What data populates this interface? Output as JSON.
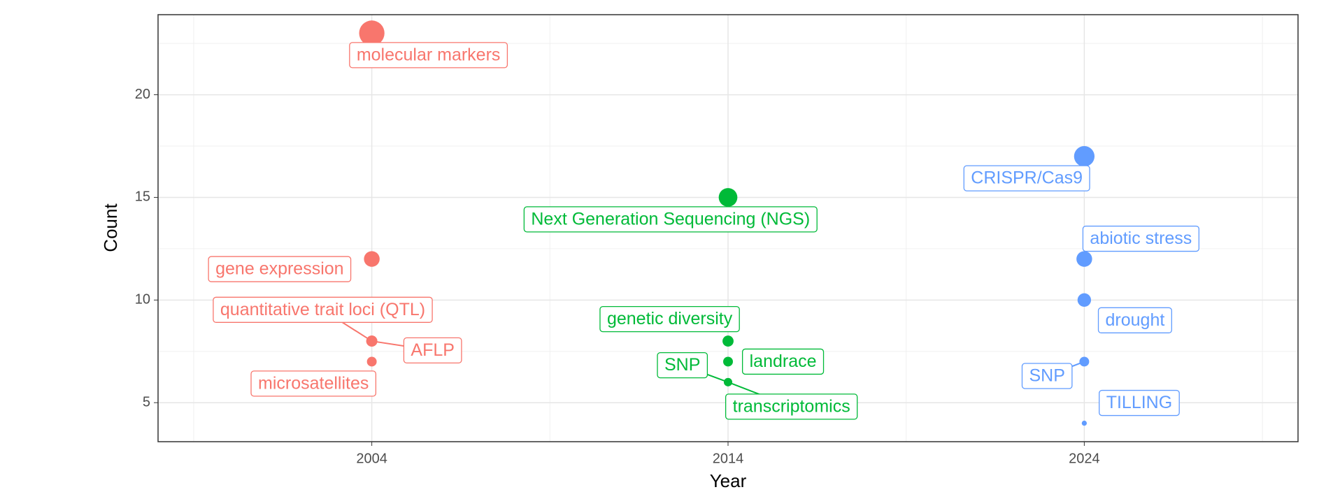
{
  "chart_data": {
    "type": "scatter",
    "x_label": "Year",
    "y_label": "Count",
    "xlim": [
      1998,
      2030
    ],
    "ylim": [
      3.1,
      23.9
    ],
    "xticks": [
      2004,
      2014,
      2024
    ],
    "yticks": [
      5,
      10,
      15,
      20
    ],
    "grid": true,
    "series": [
      {
        "color": "#F8766D",
        "x": [
          2004,
          2004,
          2004,
          2004,
          2004
        ],
        "values": [
          23,
          12,
          8,
          8,
          7
        ],
        "labels": [
          "molecular markers",
          "gene expression",
          "quantitative trait loci (QTL)",
          "AFLP",
          "microsatellites"
        ]
      },
      {
        "color": "#00BA38",
        "x": [
          2014,
          2014,
          2014,
          2014,
          2014
        ],
        "values": [
          15,
          8,
          7,
          6,
          6
        ],
        "labels": [
          "Next Generation Sequencing (NGS)",
          "genetic diversity",
          "landrace",
          "SNP",
          "transcriptomics"
        ]
      },
      {
        "color": "#619CFF",
        "x": [
          2024,
          2024,
          2024,
          2024,
          2024
        ],
        "values": [
          17,
          12,
          10,
          7,
          4
        ],
        "labels": [
          "CRISPR/Cas9",
          "abiotic stress",
          "drought",
          "SNP",
          "TILLING"
        ]
      }
    ]
  }
}
